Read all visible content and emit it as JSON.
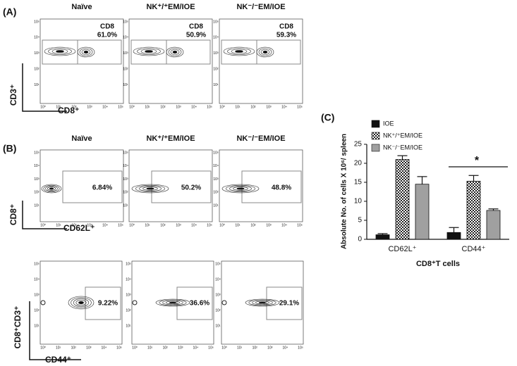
{
  "flow_tick_labels": [
    "10⁰",
    "10¹",
    "10²",
    "10³",
    "10⁴",
    "10⁵"
  ],
  "groups": [
    "Naïve",
    "NK⁺/⁺EM/IOE",
    "NK⁻/⁻EM/IOE"
  ],
  "panel_a": {
    "label": "(A)",
    "gate_name": "CD8",
    "percents": [
      "61.0%",
      "50.9%",
      "59.3%"
    ],
    "y_axis": "CD3⁺",
    "x_axis": "CD8⁺"
  },
  "panel_b": {
    "label": "(B)",
    "rows": [
      {
        "percents": [
          "6.84%",
          "50.2%",
          "48.8%"
        ],
        "y_axis": "CD8⁺",
        "x_axis": "CD62L⁺"
      },
      {
        "percents": [
          "9.22%",
          "36.6%",
          "29.1%"
        ],
        "y_axis": "CD8⁺CD3⁺",
        "x_axis": "CD44⁺"
      }
    ]
  },
  "chart_data": {
    "type": "bar",
    "panel_label": "(C)",
    "y_label": "Absolute No. of cells X 10⁶/ spleen",
    "x_label": "CD8⁺T cells",
    "categories": [
      "CD62L⁺",
      "CD44⁺"
    ],
    "series": [
      {
        "name": "IOE",
        "color": "#111111",
        "values": [
          1.2,
          1.8
        ],
        "errors": [
          0.3,
          1.3
        ]
      },
      {
        "name": "NK⁺/⁺EM/IOE",
        "color": "#ffffff",
        "pattern": "checker",
        "values": [
          21,
          15.3
        ],
        "errors": [
          1.0,
          1.5
        ]
      },
      {
        "name": "NK⁻/⁻EM/IOE",
        "color": "#a0a0a0",
        "values": [
          14.5,
          7.6
        ],
        "errors": [
          2.0,
          0.4
        ]
      }
    ],
    "ylim": [
      0,
      25
    ],
    "yticks": [
      0,
      5,
      10,
      15,
      20,
      25
    ],
    "annotation": "*"
  }
}
